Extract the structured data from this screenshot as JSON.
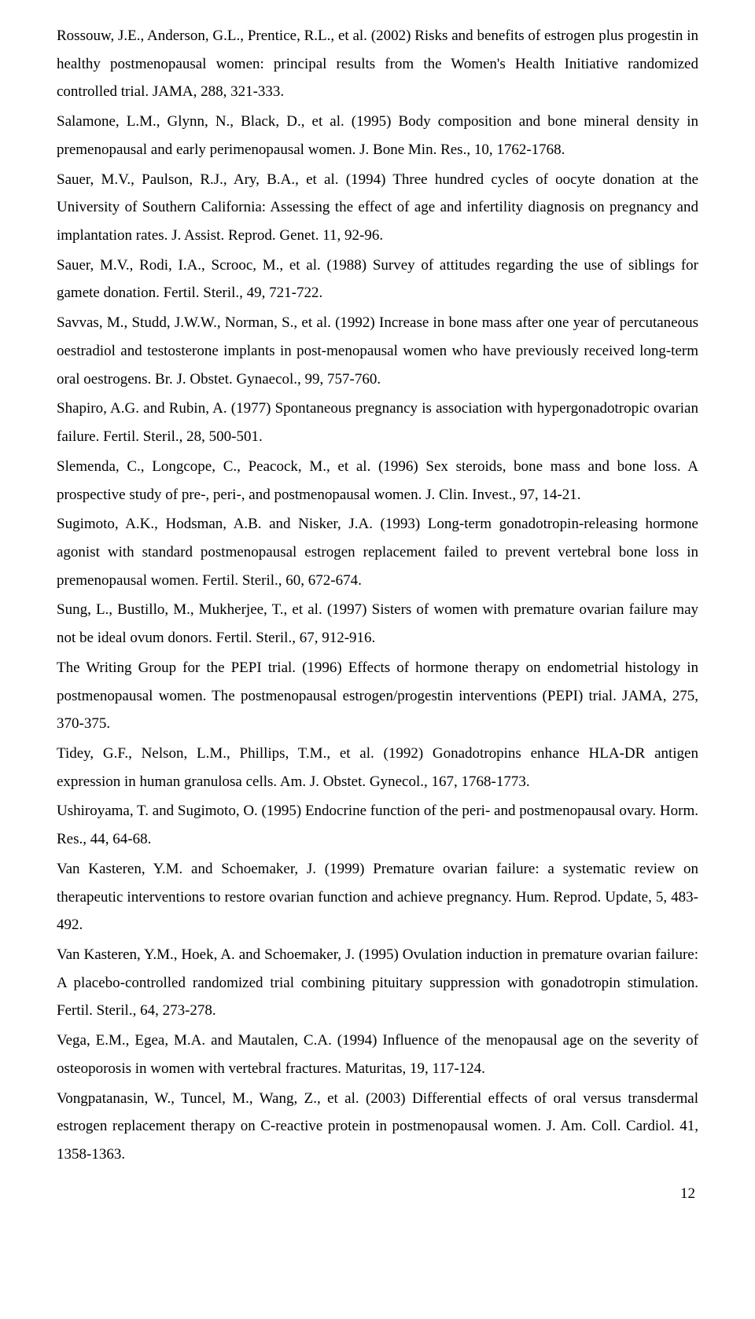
{
  "typography": {
    "font_family": "Times New Roman",
    "font_size_pt": 12,
    "line_height": 1.88,
    "text_color": "#000000",
    "background_color": "#ffffff",
    "alignment": "justify"
  },
  "references": [
    "Rossouw, J.E., Anderson, G.L., Prentice, R.L., et al. (2002) Risks and benefits of estrogen plus progestin in healthy postmenopausal women: principal results from the Women's Health Initiative randomized controlled trial. JAMA, 288, 321-333.",
    "Salamone, L.M., Glynn, N., Black, D., et al. (1995) Body composition and bone mineral density in premenopausal and early perimenopausal women. J. Bone Min. Res., 10, 1762-1768.",
    "Sauer, M.V., Paulson, R.J., Ary, B.A., et al. (1994) Three hundred cycles of oocyte donation at the University of Southern California: Assessing the effect of age and infertility diagnosis on pregnancy and implantation rates. J. Assist. Reprod. Genet. 11, 92-96.",
    "Sauer, M.V., Rodi, I.A., Scrooc, M., et al. (1988) Survey of attitudes regarding the use of siblings for gamete donation. Fertil. Steril., 49, 721-722.",
    "Savvas, M., Studd, J.W.W., Norman, S., et al. (1992) Increase in bone mass after one year of percutaneous oestradiol and testosterone implants in post-menopausal women who have previously received long-term oral oestrogens. Br. J. Obstet. Gynaecol., 99, 757-760.",
    "Shapiro, A.G. and Rubin, A. (1977) Spontaneous pregnancy is association with hypergonadotropic ovarian failure. Fertil. Steril., 28, 500-501.",
    "Slemenda, C., Longcope, C., Peacock, M., et al. (1996) Sex steroids, bone mass and bone loss. A prospective study of pre-, peri-, and postmenopausal women. J. Clin. Invest., 97, 14-21.",
    "Sugimoto, A.K., Hodsman, A.B. and Nisker, J.A. (1993) Long-term gonadotropin-releasing hormone agonist with standard postmenopausal estrogen replacement failed to prevent vertebral bone loss in premenopausal women. Fertil. Steril., 60, 672-674.",
    "Sung, L., Bustillo, M., Mukherjee, T., et al. (1997) Sisters of women with premature ovarian failure may not be ideal ovum donors. Fertil. Steril., 67, 912-916.",
    "The Writing Group for the PEPI trial. (1996) Effects of hormone therapy on endometrial histology in postmenopausal women. The postmenopausal estrogen/progestin interventions (PEPI) trial. JAMA, 275, 370-375.",
    "Tidey, G.F., Nelson, L.M., Phillips, T.M., et al. (1992) Gonadotropins enhance HLA-DR antigen expression in human granulosa cells. Am. J. Obstet. Gynecol., 167, 1768-1773.",
    "Ushiroyama, T. and Sugimoto, O. (1995) Endocrine function of the peri- and postmenopausal ovary. Horm. Res., 44, 64-68.",
    "Van Kasteren, Y.M. and Schoemaker, J. (1999) Premature ovarian failure: a systematic review on therapeutic interventions to restore ovarian function and achieve pregnancy. Hum. Reprod. Update, 5, 483-492.",
    "Van Kasteren, Y.M., Hoek, A. and Schoemaker, J. (1995) Ovulation induction in premature ovarian failure: A placebo-controlled randomized trial combining pituitary suppression with gonadotropin stimulation. Fertil. Steril., 64, 273-278.",
    "Vega, E.M., Egea, M.A. and Mautalen, C.A. (1994) Influence of the menopausal age on the severity of osteoporosis in women with vertebral fractures. Maturitas, 19, 117-124.",
    "Vongpatanasin, W., Tuncel, M., Wang, Z., et al. (2003) Differential effects of oral versus transdermal estrogen replacement therapy on C-reactive protein in postmenopausal women. J. Am. Coll. Cardiol. 41, 1358-1363."
  ],
  "page_number": "12"
}
